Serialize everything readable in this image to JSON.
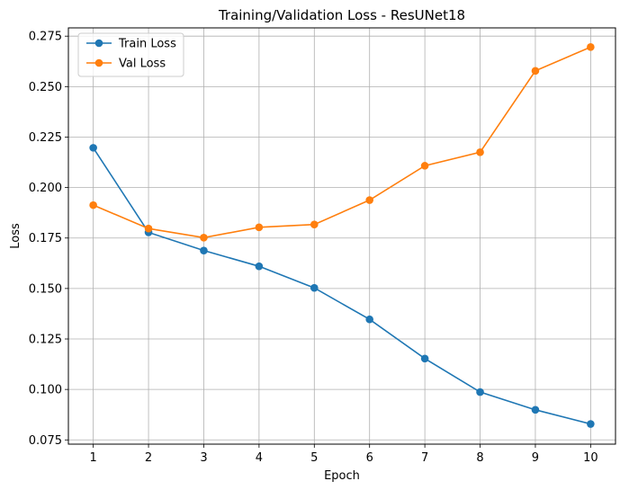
{
  "chart_data": {
    "type": "line",
    "title": "Training/Validation Loss - ResUNet18",
    "xlabel": "Epoch",
    "ylabel": "Loss",
    "x": [
      1,
      2,
      3,
      4,
      5,
      6,
      7,
      8,
      9,
      10
    ],
    "x_ticks": [
      "1",
      "2",
      "3",
      "4",
      "5",
      "6",
      "7",
      "8",
      "9",
      "10"
    ],
    "y_ticks": [
      "0.075",
      "0.100",
      "0.125",
      "0.150",
      "0.175",
      "0.200",
      "0.225",
      "0.250",
      "0.275"
    ],
    "y_tick_values": [
      0.075,
      0.1,
      0.125,
      0.15,
      0.175,
      0.2,
      0.225,
      0.25,
      0.275
    ],
    "xlim": [
      0.55,
      10.45
    ],
    "ylim": [
      0.0729,
      0.2791
    ],
    "grid": true,
    "legend_position": "upper-left",
    "series": [
      {
        "name": "Train Loss",
        "color": "#1f77b4",
        "marker": "circle",
        "values": [
          0.2197,
          0.1778,
          0.1688,
          0.161,
          0.1503,
          0.1347,
          0.1153,
          0.0987,
          0.0899,
          0.0829
        ]
      },
      {
        "name": "Val Loss",
        "color": "#ff7f0e",
        "marker": "circle",
        "values": [
          0.1913,
          0.1797,
          0.1752,
          0.1803,
          0.1817,
          0.1938,
          0.2108,
          0.2175,
          0.2578,
          0.2696
        ]
      }
    ]
  }
}
